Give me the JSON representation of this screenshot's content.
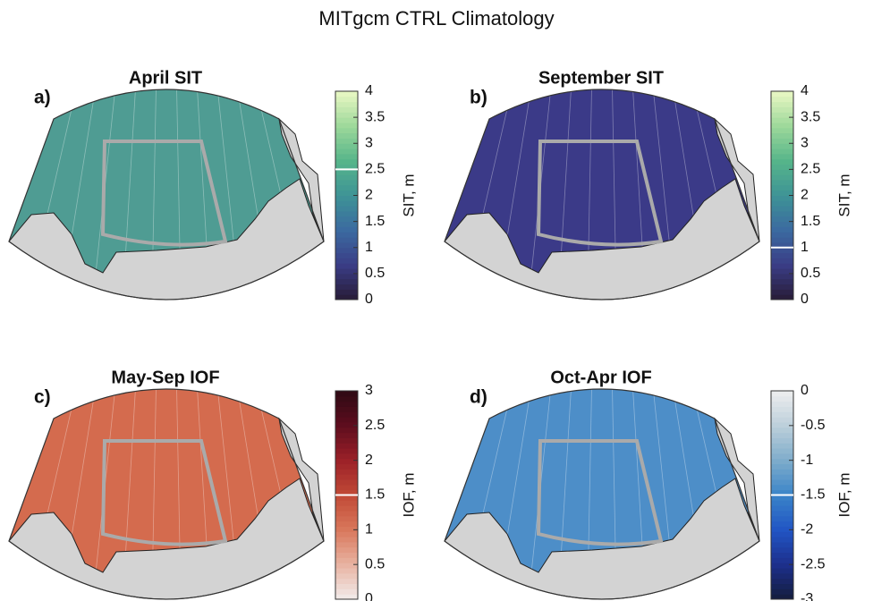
{
  "chart_data": [
    {
      "type": "map",
      "title": "MITgcm CTRL Climatology",
      "panel_label": "a)",
      "subtitle": "April SIT",
      "colorbar_label": "SIT, m",
      "clim": [
        0,
        4
      ],
      "cticks": [
        0,
        0.5,
        1,
        1.5,
        2,
        2.5,
        3,
        3.5,
        4
      ],
      "contour_level": 2.5,
      "colormap": [
        "#281c36",
        "#3a3d86",
        "#3b6aa0",
        "#3e9396",
        "#56b58a",
        "#9dd89a",
        "#eaf8c4"
      ],
      "ocean_color": "#4f9c93"
    },
    {
      "type": "map",
      "panel_label": "b)",
      "subtitle": "September SIT",
      "colorbar_label": "SIT, m",
      "clim": [
        0,
        4
      ],
      "cticks": [
        0,
        0.5,
        1,
        1.5,
        2,
        2.5,
        3,
        3.5,
        4
      ],
      "contour_level": 1,
      "colormap": [
        "#281c36",
        "#3a3d86",
        "#3b6aa0",
        "#3e9396",
        "#56b58a",
        "#9dd89a",
        "#eaf8c4"
      ],
      "ocean_color": "#3b3a88"
    },
    {
      "type": "map",
      "panel_label": "c)",
      "subtitle": "May-Sep IOF",
      "colorbar_label": "IOF, m",
      "clim": [
        0,
        3
      ],
      "cticks": [
        0,
        0.5,
        1,
        1.5,
        2,
        2.5,
        3
      ],
      "contour_level": 1.5,
      "colormap": [
        "#f2eceb",
        "#e8b3a2",
        "#d9785c",
        "#c14a36",
        "#9c2128",
        "#5e0d1e",
        "#2e0a14"
      ],
      "ocean_color": "#d46b4e"
    },
    {
      "type": "map",
      "panel_label": "d)",
      "subtitle": "Oct-Apr IOF",
      "colorbar_label": "IOF, m",
      "clim": [
        -3,
        0
      ],
      "cticks": [
        -3,
        -2.5,
        -2,
        -1.5,
        -1,
        -0.5,
        0
      ],
      "contour_level": -1.5,
      "colormap": [
        "#141d3c",
        "#1d2f8c",
        "#2155c4",
        "#3a84c8",
        "#7eaccb",
        "#bccfda",
        "#eeeeee"
      ],
      "ocean_color": "#4d8ec8"
    }
  ]
}
